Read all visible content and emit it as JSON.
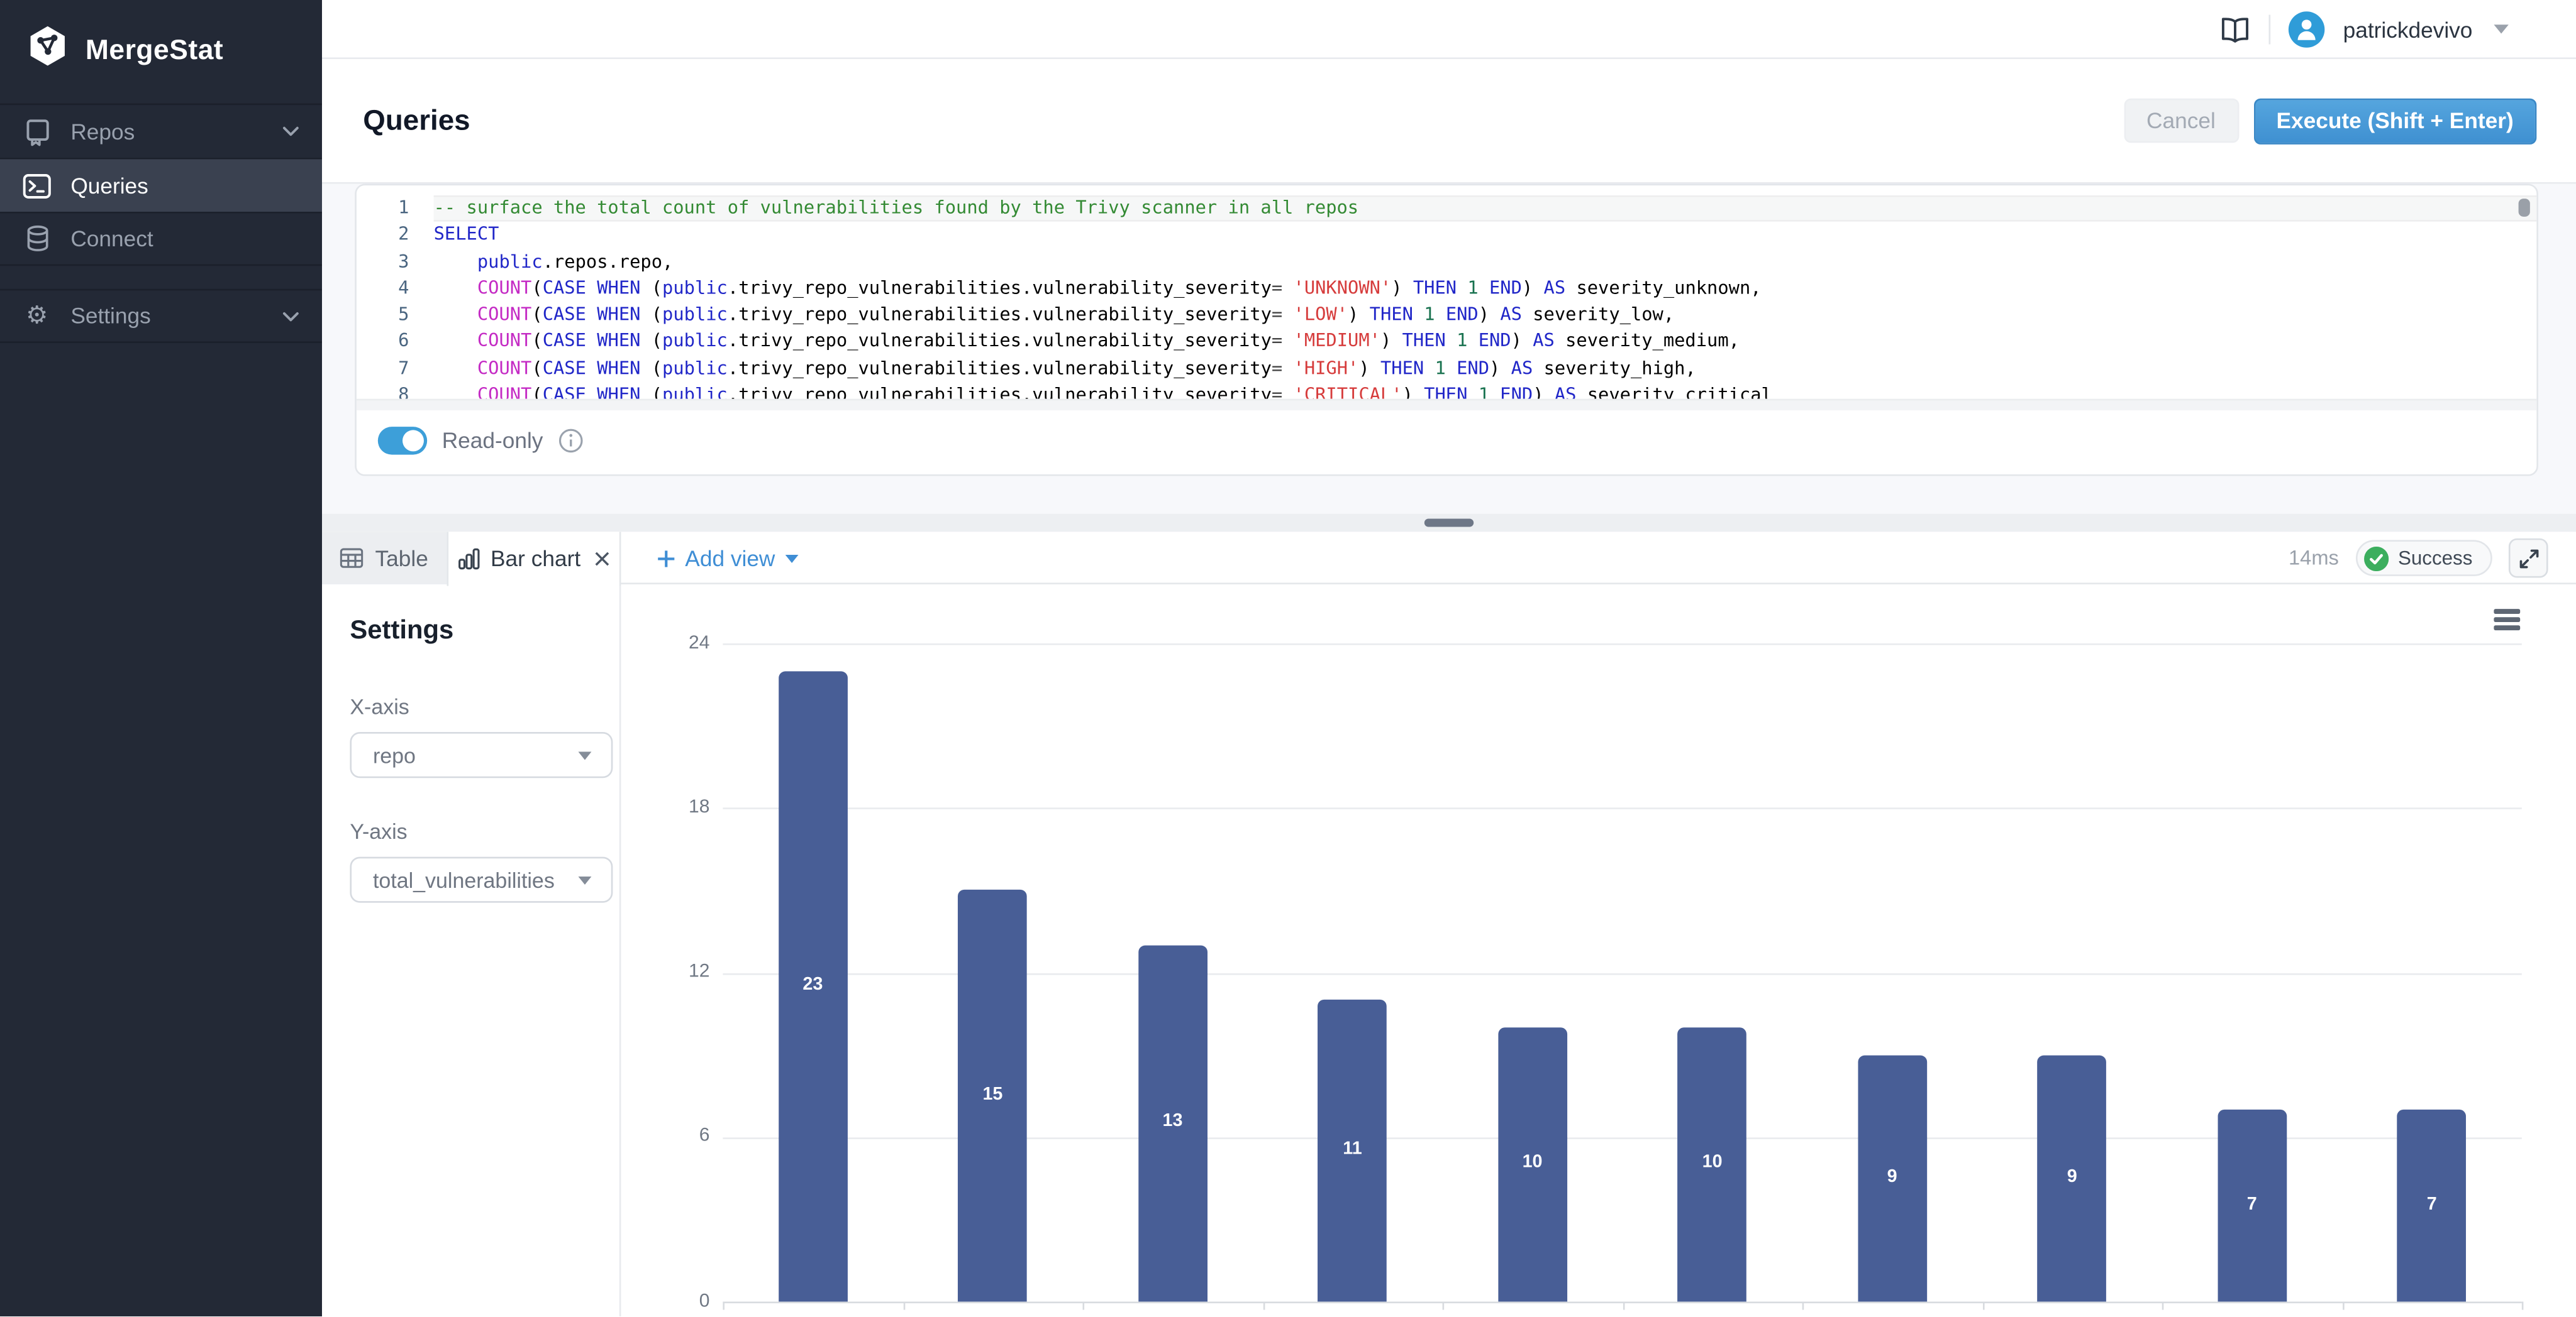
{
  "brand": {
    "name": "MergeStat"
  },
  "sidebar": {
    "items": [
      {
        "label": "Repos",
        "icon": "repo-icon",
        "chevron": true,
        "active": false
      },
      {
        "label": "Queries",
        "icon": "terminal-icon",
        "chevron": false,
        "active": true
      },
      {
        "label": "Connect",
        "icon": "database-icon",
        "chevron": false,
        "active": false
      }
    ],
    "footer_items": [
      {
        "label": "Settings",
        "icon": "gear-icon",
        "chevron": true,
        "active": false
      }
    ]
  },
  "topbar": {
    "username": "patrickdevivo",
    "icons": [
      "book-icon",
      "avatar",
      "caret-down-icon"
    ]
  },
  "header": {
    "title": "Queries",
    "cancel_label": "Cancel",
    "execute_label": "Execute (Shift + Enter)"
  },
  "editor": {
    "read_only_label": "Read-only",
    "read_only_enabled": true,
    "lines": [
      {
        "number": 1,
        "active": true,
        "tokens": [
          [
            "c",
            "-- surface the total count of vulnerabilities found by the Trivy scanner in all repos"
          ]
        ]
      },
      {
        "number": 2,
        "tokens": [
          [
            "k",
            "SELECT"
          ]
        ]
      },
      {
        "number": 3,
        "tokens": [
          [
            "p",
            "    "
          ],
          [
            "k",
            "public"
          ],
          [
            "p",
            ".repos.repo,"
          ]
        ]
      },
      {
        "number": 4,
        "tokens": [
          [
            "p",
            "    "
          ],
          [
            "f",
            "COUNT"
          ],
          [
            "p",
            "("
          ],
          [
            "k",
            "CASE"
          ],
          [
            "p",
            " "
          ],
          [
            "k",
            "WHEN"
          ],
          [
            "p",
            " ("
          ],
          [
            "k",
            "public"
          ],
          [
            "p",
            ".trivy_repo_vulnerabilities.vulnerability_severity"
          ],
          [
            "o",
            "="
          ],
          [
            "p",
            " "
          ],
          [
            "s",
            "'UNKNOWN'"
          ],
          [
            "p",
            ") "
          ],
          [
            "k",
            "THEN"
          ],
          [
            "p",
            " "
          ],
          [
            "n",
            "1"
          ],
          [
            "p",
            " "
          ],
          [
            "k",
            "END"
          ],
          [
            "p",
            ") "
          ],
          [
            "k",
            "AS"
          ],
          [
            "p",
            " severity_unknown,"
          ]
        ]
      },
      {
        "number": 5,
        "tokens": [
          [
            "p",
            "    "
          ],
          [
            "f",
            "COUNT"
          ],
          [
            "p",
            "("
          ],
          [
            "k",
            "CASE"
          ],
          [
            "p",
            " "
          ],
          [
            "k",
            "WHEN"
          ],
          [
            "p",
            " ("
          ],
          [
            "k",
            "public"
          ],
          [
            "p",
            ".trivy_repo_vulnerabilities.vulnerability_severity"
          ],
          [
            "o",
            "="
          ],
          [
            "p",
            " "
          ],
          [
            "s",
            "'LOW'"
          ],
          [
            "p",
            ") "
          ],
          [
            "k",
            "THEN"
          ],
          [
            "p",
            " "
          ],
          [
            "n",
            "1"
          ],
          [
            "p",
            " "
          ],
          [
            "k",
            "END"
          ],
          [
            "p",
            ") "
          ],
          [
            "k",
            "AS"
          ],
          [
            "p",
            " severity_low,"
          ]
        ]
      },
      {
        "number": 6,
        "tokens": [
          [
            "p",
            "    "
          ],
          [
            "f",
            "COUNT"
          ],
          [
            "p",
            "("
          ],
          [
            "k",
            "CASE"
          ],
          [
            "p",
            " "
          ],
          [
            "k",
            "WHEN"
          ],
          [
            "p",
            " ("
          ],
          [
            "k",
            "public"
          ],
          [
            "p",
            ".trivy_repo_vulnerabilities.vulnerability_severity"
          ],
          [
            "o",
            "="
          ],
          [
            "p",
            " "
          ],
          [
            "s",
            "'MEDIUM'"
          ],
          [
            "p",
            ") "
          ],
          [
            "k",
            "THEN"
          ],
          [
            "p",
            " "
          ],
          [
            "n",
            "1"
          ],
          [
            "p",
            " "
          ],
          [
            "k",
            "END"
          ],
          [
            "p",
            ") "
          ],
          [
            "k",
            "AS"
          ],
          [
            "p",
            " severity_medium,"
          ]
        ]
      },
      {
        "number": 7,
        "tokens": [
          [
            "p",
            "    "
          ],
          [
            "f",
            "COUNT"
          ],
          [
            "p",
            "("
          ],
          [
            "k",
            "CASE"
          ],
          [
            "p",
            " "
          ],
          [
            "k",
            "WHEN"
          ],
          [
            "p",
            " ("
          ],
          [
            "k",
            "public"
          ],
          [
            "p",
            ".trivy_repo_vulnerabilities.vulnerability_severity"
          ],
          [
            "o",
            "="
          ],
          [
            "p",
            " "
          ],
          [
            "s",
            "'HIGH'"
          ],
          [
            "p",
            ") "
          ],
          [
            "k",
            "THEN"
          ],
          [
            "p",
            " "
          ],
          [
            "n",
            "1"
          ],
          [
            "p",
            " "
          ],
          [
            "k",
            "END"
          ],
          [
            "p",
            ") "
          ],
          [
            "k",
            "AS"
          ],
          [
            "p",
            " severity_high,"
          ]
        ]
      },
      {
        "number": 8,
        "tokens": [
          [
            "p",
            "    "
          ],
          [
            "f",
            "COUNT"
          ],
          [
            "p",
            "("
          ],
          [
            "k",
            "CASE"
          ],
          [
            "p",
            " "
          ],
          [
            "k",
            "WHEN"
          ],
          [
            "p",
            " ("
          ],
          [
            "k",
            "public"
          ],
          [
            "p",
            ".trivy_repo_vulnerabilities.vulnerability_severity"
          ],
          [
            "o",
            "="
          ],
          [
            "p",
            " "
          ],
          [
            "s",
            "'CRITICAL'"
          ],
          [
            "p",
            ") "
          ],
          [
            "k",
            "THEN"
          ],
          [
            "p",
            " "
          ],
          [
            "n",
            "1"
          ],
          [
            "p",
            " "
          ],
          [
            "k",
            "END"
          ],
          [
            "p",
            ") "
          ],
          [
            "k",
            "AS"
          ],
          [
            "p",
            " severity_critical"
          ]
        ]
      }
    ]
  },
  "results_bar": {
    "tabs": [
      {
        "label": "Table",
        "icon": "table-icon",
        "active": false
      },
      {
        "label": "Bar chart",
        "icon": "bar-chart-icon",
        "active": true,
        "closable": true
      }
    ],
    "add_view_label": "Add view",
    "duration": "14ms",
    "status_label": "Success"
  },
  "view_settings": {
    "title": "Settings",
    "fields": [
      {
        "label": "X-axis",
        "value": "repo"
      },
      {
        "label": "Y-axis",
        "value": "total_vulnerabilities"
      }
    ]
  },
  "chart_data": {
    "type": "bar",
    "title": "",
    "xlabel": "repo",
    "ylabel": "total_vulnerabilities",
    "values": [
      23,
      15,
      13,
      11,
      10,
      10,
      9,
      9,
      7,
      7
    ],
    "categories": [
      "",
      "",
      "",
      "",
      "",
      "",
      "",
      "",
      "",
      ""
    ],
    "y_ticks": [
      24,
      18,
      12,
      6,
      0
    ],
    "ylim": [
      0,
      24
    ],
    "grid": true,
    "legend": false,
    "bar_color": "#485e96",
    "value_labels": true,
    "x_tick_labels_visible": false
  },
  "colors": {
    "sidebar_bg": "#232936",
    "sidebar_active_bg": "#3a4150",
    "accent_blue": "#3f90d1",
    "toggle_blue": "#3d9fd9",
    "link_blue": "#3f8ed5",
    "success_green": "#3cae5e",
    "bar_blue": "#485e96",
    "content_bg": "#f7f8fb"
  }
}
